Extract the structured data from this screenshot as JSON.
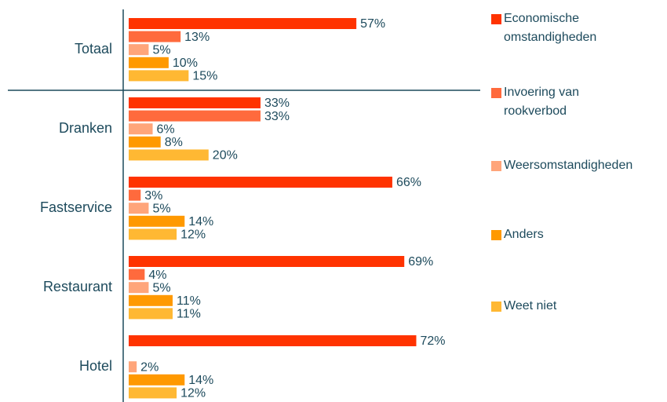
{
  "chart_data": {
    "type": "hbar",
    "categories": [
      "Totaal",
      "Dranken",
      "Fastservice",
      "Restaurant",
      "Hotel"
    ],
    "series": [
      {
        "name": "Economische omstandigheden",
        "color": "#ff3300",
        "values": [
          57,
          33,
          66,
          69,
          72
        ],
        "value_labels": [
          "57%",
          "33%",
          "66%",
          "69%",
          "72%"
        ]
      },
      {
        "name": "Invoering van rookverbod",
        "color": "#ff6a3d",
        "values": [
          13,
          33,
          3,
          4,
          null
        ],
        "value_labels": [
          "13%",
          "33%",
          "3%",
          "4%",
          null
        ]
      },
      {
        "name": "Weersomstandigheden",
        "color": "#ffa57a",
        "values": [
          5,
          6,
          5,
          5,
          2
        ],
        "value_labels": [
          "5%",
          "6%",
          "5%",
          "5%",
          "2%"
        ]
      },
      {
        "name": "Anders",
        "color": "#ff9900",
        "values": [
          10,
          8,
          14,
          11,
          14
        ],
        "value_labels": [
          "10%",
          "8%",
          "14%",
          "11%",
          "14%"
        ]
      },
      {
        "name": "Weet niet",
        "color": "#ffb833",
        "values": [
          15,
          20,
          12,
          11,
          12
        ],
        "value_labels": [
          "15%",
          "20%",
          "12%",
          "11%",
          "12%"
        ]
      }
    ],
    "legend": "right"
  }
}
